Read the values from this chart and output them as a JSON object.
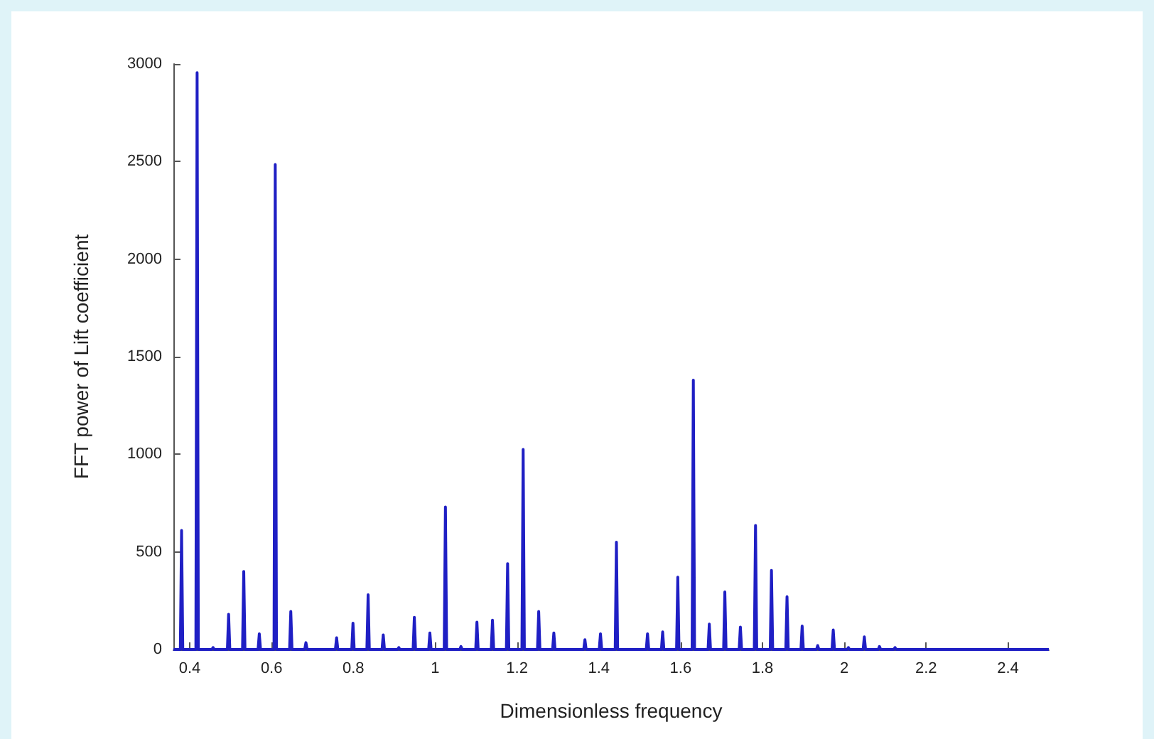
{
  "chart_data": {
    "type": "line",
    "xlabel": "Dimensionless frequency",
    "ylabel": "FFT power of Lift coefficient",
    "x": [
      0.36,
      0.377,
      0.38,
      0.383,
      0.415,
      0.418,
      0.421,
      0.454,
      0.457,
      0.46,
      0.492,
      0.495,
      0.498,
      0.529,
      0.532,
      0.535,
      0.567,
      0.57,
      0.573,
      0.606,
      0.609,
      0.612,
      0.644,
      0.647,
      0.65,
      0.681,
      0.684,
      0.687,
      0.756,
      0.759,
      0.762,
      0.796,
      0.799,
      0.802,
      0.833,
      0.836,
      0.839,
      0.87,
      0.873,
      0.876,
      0.908,
      0.911,
      0.914,
      0.946,
      0.949,
      0.952,
      0.984,
      0.987,
      0.99,
      1.022,
      1.025,
      1.028,
      1.06,
      1.063,
      1.066,
      1.099,
      1.102,
      1.105,
      1.137,
      1.14,
      1.143,
      1.174,
      1.177,
      1.18,
      1.212,
      1.215,
      1.218,
      1.25,
      1.253,
      1.256,
      1.287,
      1.29,
      1.293,
      1.363,
      1.366,
      1.369,
      1.401,
      1.404,
      1.407,
      1.44,
      1.443,
      1.446,
      1.516,
      1.519,
      1.522,
      1.553,
      1.556,
      1.559,
      1.59,
      1.593,
      1.596,
      1.628,
      1.631,
      1.634,
      1.667,
      1.67,
      1.673,
      1.705,
      1.708,
      1.711,
      1.743,
      1.746,
      1.749,
      1.78,
      1.783,
      1.786,
      1.819,
      1.822,
      1.825,
      1.857,
      1.86,
      1.863,
      1.894,
      1.897,
      1.9,
      1.932,
      1.935,
      1.938,
      1.97,
      1.973,
      1.976,
      2.007,
      2.01,
      2.013,
      2.046,
      2.049,
      2.052,
      2.083,
      2.086,
      2.089,
      2.121,
      2.124,
      2.127,
      2.5
    ],
    "values": [
      0,
      0,
      610,
      0,
      0,
      2955,
      0,
      0,
      10,
      0,
      0,
      180,
      0,
      0,
      400,
      0,
      0,
      80,
      0,
      0,
      2485,
      0,
      0,
      195,
      0,
      0,
      35,
      0,
      0,
      60,
      0,
      0,
      135,
      0,
      0,
      280,
      0,
      0,
      75,
      0,
      0,
      10,
      0,
      0,
      165,
      0,
      0,
      85,
      0,
      0,
      730,
      0,
      0,
      15,
      0,
      0,
      140,
      0,
      0,
      150,
      0,
      0,
      440,
      0,
      0,
      1025,
      0,
      0,
      195,
      0,
      0,
      85,
      0,
      0,
      50,
      0,
      0,
      80,
      0,
      0,
      550,
      0,
      0,
      80,
      0,
      0,
      90,
      0,
      0,
      370,
      0,
      0,
      1380,
      0,
      0,
      130,
      0,
      0,
      295,
      0,
      0,
      115,
      0,
      0,
      635,
      0,
      0,
      405,
      0,
      0,
      270,
      0,
      0,
      120,
      0,
      0,
      20,
      0,
      0,
      100,
      0,
      0,
      10,
      0,
      0,
      65,
      0,
      0,
      15,
      0,
      0,
      10,
      0,
      0
    ],
    "color": "#1f1fc4",
    "xlim": [
      0.36,
      2.5
    ],
    "ylim": [
      0,
      3000
    ],
    "xticks": [
      0.4,
      0.6,
      0.8,
      1,
      1.2,
      1.4,
      1.6,
      1.8,
      2,
      2.2,
      2.4
    ],
    "yticks": [
      0,
      500,
      1000,
      1500,
      2000,
      2500,
      3000
    ],
    "grid": false,
    "marker": "none",
    "line_style": "solid"
  }
}
